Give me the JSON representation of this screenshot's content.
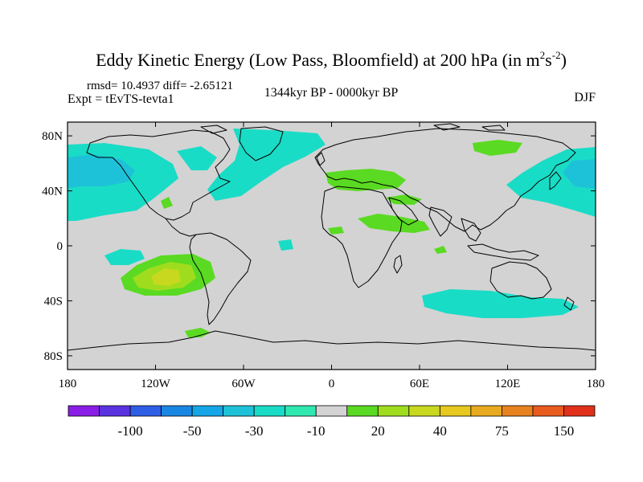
{
  "chart_data": {
    "type": "heatmap",
    "title_main": "Eddy Kinetic Energy (Low Pass, Bloomfield) at 200 hPa (in m",
    "title_exp1": "2",
    "title_mid": "s",
    "title_exp2": "-2",
    "title_close": ")",
    "stats": "rmsd= 10.4937 diff= -2.65121",
    "experiment": "Expt = tEvTS-tevta1",
    "period": "1344kyr BP - 0000kyr BP",
    "season": "DJF",
    "x_ticks": [
      "180",
      "120W",
      "60W",
      "0",
      "60E",
      "120E",
      "180"
    ],
    "y_ticks": [
      "80N",
      "40N",
      "0",
      "40S",
      "80S"
    ],
    "colorbar": {
      "colors": [
        "#8a1ee6",
        "#5a32e0",
        "#2e5de6",
        "#1a86e3",
        "#14a6e6",
        "#1ec2d8",
        "#19dcc6",
        "#2ee8b0",
        "#d3d3d3",
        "#5ada22",
        "#a0dc1e",
        "#c8d81e",
        "#e6c81e",
        "#e8aa1e",
        "#e8821e",
        "#e85a1e",
        "#e0301a"
      ],
      "labels": [
        "-100",
        "-50",
        "-30",
        "-10",
        "20",
        "40",
        "75",
        "150"
      ]
    },
    "anomaly_regions": [
      {
        "name": "north-pacific-west",
        "lon": 160,
        "lat": 42,
        "level": "-10"
      },
      {
        "name": "north-pacific-east",
        "lon": -170,
        "lat": 40,
        "level": "-10"
      },
      {
        "name": "north-atlantic",
        "lon": -40,
        "lat": 55,
        "level": "-10"
      },
      {
        "name": "mediterranean",
        "lon": 20,
        "lat": 38,
        "level": "20"
      },
      {
        "name": "arabia",
        "lon": 50,
        "lat": 20,
        "level": "20"
      },
      {
        "name": "south-pacific",
        "lon": -125,
        "lat": -30,
        "level": "40"
      },
      {
        "name": "southern-ocean",
        "lon": 120,
        "lat": -45,
        "level": "-10"
      }
    ]
  }
}
